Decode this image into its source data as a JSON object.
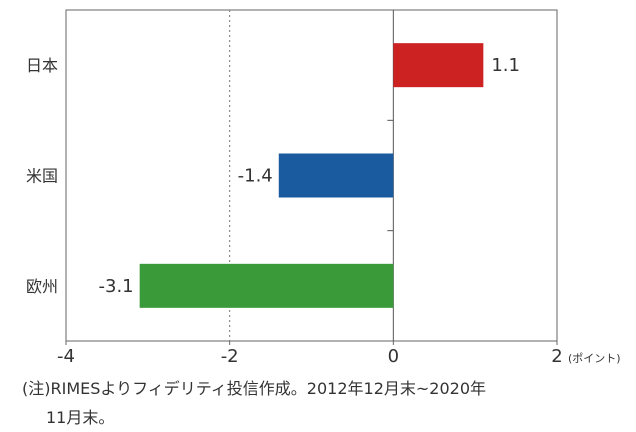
{
  "chart_data": {
    "type": "bar",
    "orientation": "horizontal",
    "categories": [
      "日本",
      "米国",
      "欧州"
    ],
    "values": [
      1.1,
      -1.4,
      -3.1
    ],
    "value_labels": [
      "1.1",
      "-1.4",
      "-3.1"
    ],
    "colors": [
      "#cc2222",
      "#1a5a9e",
      "#3a9a3a"
    ],
    "xlim": [
      -4,
      2
    ],
    "x_ticks": [
      -4,
      -2,
      0,
      2
    ],
    "x_tick_labels": [
      "-4",
      "-2",
      "0",
      "2"
    ],
    "x_unit": "(ポイント)",
    "reference_lines": [
      {
        "x": -2,
        "style": "dotted"
      },
      {
        "x": 0,
        "style": "solid"
      }
    ]
  },
  "note": {
    "line1": "(注)RIMESよりフィデリティ投信作成。2012年12月末~2020年",
    "line2": "11月末。"
  }
}
